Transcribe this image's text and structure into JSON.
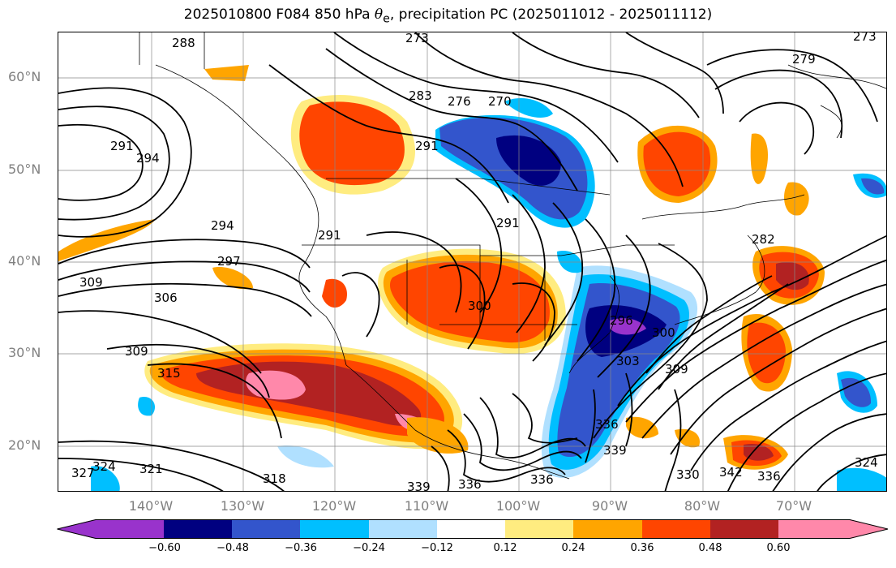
{
  "title": {
    "prefix": "2025010800 F084 850 hPa ",
    "theta": "θ",
    "theta_sub": "e",
    "suffix": ", precipitation PC (2025011012 - 2025011112)"
  },
  "lat_labels": [
    "60°N",
    "50°N",
    "40°N",
    "30°N",
    "20°N"
  ],
  "lon_labels": [
    "140°W",
    "130°W",
    "120°W",
    "110°W",
    "100°W",
    "90°W",
    "80°W",
    "70°W"
  ],
  "contour_labels": [
    "288",
    "273",
    "279",
    "273",
    "276",
    "270",
    "283",
    "291",
    "291",
    "294",
    "294",
    "291",
    "297",
    "291",
    "309",
    "306",
    "309",
    "315",
    "282",
    "300",
    "303",
    "300",
    "296",
    "309",
    "336",
    "339",
    "330",
    "342",
    "336",
    "324",
    "327",
    "324",
    "321",
    "318",
    "336",
    "336",
    "339"
  ],
  "colorbar": {
    "ticks": [
      "−0.60",
      "−0.48",
      "−0.36",
      "−0.24",
      "−0.12",
      "0.12",
      "0.24",
      "0.36",
      "0.48",
      "0.60"
    ],
    "colors": [
      "#9933cc",
      "#000080",
      "#3355cc",
      "#00bfff",
      "#b0e0ff",
      "#ffffff",
      "#ffec80",
      "#ffa500",
      "#ff4500",
      "#b22222",
      "#ff88aa"
    ]
  }
}
